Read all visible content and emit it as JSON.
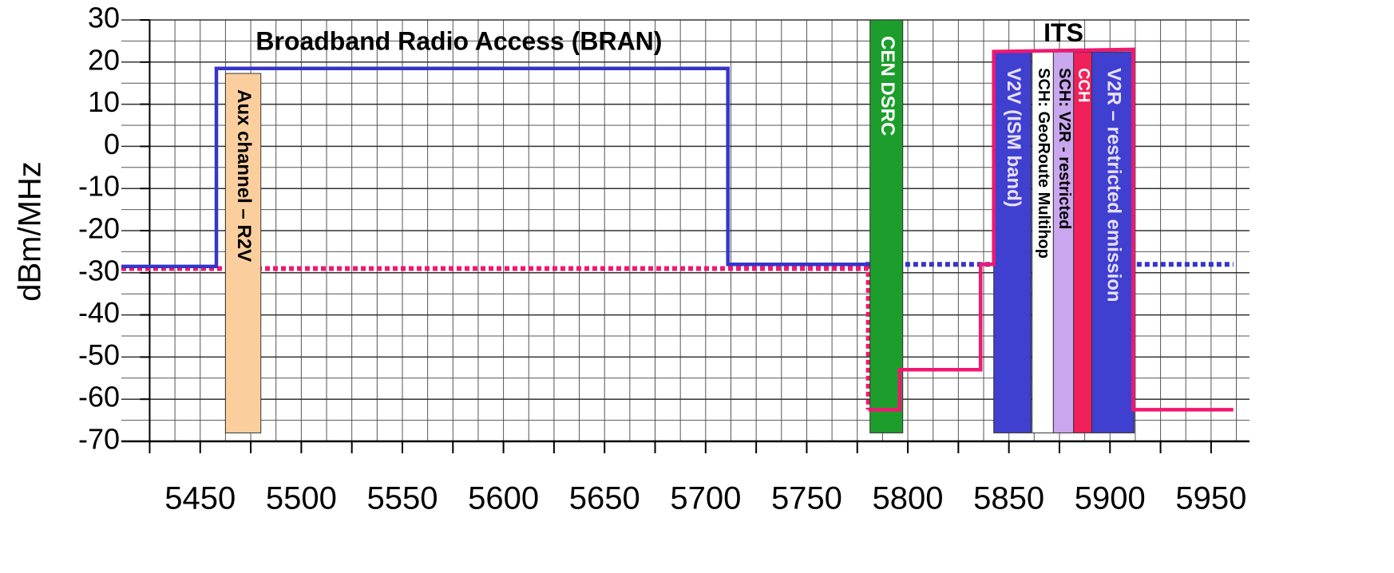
{
  "chart_data": {
    "type": "line",
    "annotations": [
      {
        "text": "Broadband Radio Access (BRAN)",
        "x": 5578,
        "y": 24.5
      },
      {
        "text": "ITS",
        "x": 5877,
        "y": 26.5
      }
    ],
    "ylabel": "dBm/MHz",
    "xlim": [
      5411,
      5969
    ],
    "ylim": [
      -70,
      30
    ],
    "xticks": [
      5450,
      5500,
      5550,
      5600,
      5650,
      5700,
      5750,
      5800,
      5850,
      5900,
      5950
    ],
    "xminorticks": [
      5425,
      5475,
      5525,
      5575,
      5625,
      5675,
      5725,
      5775,
      5825,
      5875,
      5925
    ],
    "yticks": [
      -70,
      -60,
      -50,
      -40,
      -30,
      -20,
      -10,
      0,
      10,
      20,
      30
    ],
    "xgrid": [
      5425,
      5437.5,
      5450,
      5462.5,
      5475,
      5487.5,
      5500,
      5512.5,
      5525,
      5537.5,
      5550,
      5562.5,
      5575,
      5587.5,
      5600,
      5612.5,
      5625,
      5637.5,
      5650,
      5662.5,
      5675,
      5687.5,
      5700,
      5712.5,
      5725,
      5737.5,
      5750,
      5762.5,
      5775,
      5787.5,
      5800,
      5812.5,
      5825,
      5837.5,
      5850,
      5862.5,
      5875,
      5887.5,
      5900,
      5912.5,
      5925,
      5937.5,
      5950,
      5962.5
    ],
    "ygrid": [
      -65,
      -60,
      -55,
      -50,
      -45,
      -40,
      -35,
      -30,
      -25,
      -20,
      -15,
      -10,
      -5,
      0,
      5,
      10,
      15,
      20,
      25
    ],
    "series": [
      {
        "color": "#3535c8",
        "style": "solid",
        "x": [
          5411,
          5458,
          5458,
          5711,
          5711,
          5779
        ],
        "values": [
          -28.5,
          -28.5,
          18.5,
          18.5,
          -28,
          -28
        ]
      },
      {
        "color": "#3535c8",
        "style": "dotted",
        "x": [
          5779,
          5961
        ],
        "values": [
          -28,
          -28
        ]
      },
      {
        "color": "#f01870",
        "style": "dotted",
        "x": [
          5411,
          5780.5,
          5780.5
        ],
        "values": [
          -29,
          -29,
          -62.5
        ]
      },
      {
        "color": "#f01870",
        "style": "solid",
        "x": [
          5780.5,
          5796,
          5796,
          5836,
          5836,
          5842.5,
          5842.5,
          5911.5,
          5911.5,
          5961
        ],
        "values": [
          -62.5,
          -62.5,
          -53,
          -53,
          -28,
          -28,
          22.5,
          23,
          -62.5,
          -62.5
        ]
      }
    ],
    "bands": [
      {
        "label": "Aux channel – R2V",
        "x": [
          5462.5,
          5480
        ],
        "values": [
          17.3,
          -68
        ],
        "color": "#fbcf9d",
        "text_color": "#000000"
      },
      {
        "label": "CEN DSRC",
        "x": [
          5781.3,
          5797.5
        ],
        "values": [
          30,
          -68
        ],
        "color": "#1d9e2c",
        "text_color": "#ffffff"
      },
      {
        "label": "V2V (ISM band)",
        "x": [
          5842.5,
          5861
        ],
        "values": [
          22.4,
          -68
        ],
        "color": "#3f3fd0",
        "text_color": "#e8e0ff"
      },
      {
        "label": "SCH: GeoRoute Multihop",
        "x": [
          5861.5,
          5872
        ],
        "values": [
          22.4,
          -68
        ],
        "color": "#ffffff",
        "text_color": "#000000"
      },
      {
        "label": "SCH: V2R - restricted",
        "x": [
          5872,
          5882
        ],
        "values": [
          22.4,
          -68
        ],
        "color": "#c9a6ee",
        "text_color": "#000000"
      },
      {
        "label": "CCH",
        "x": [
          5882,
          5891
        ],
        "values": [
          22.4,
          -68
        ],
        "color": "#f0205a",
        "text_color": "#ffffff"
      },
      {
        "label": "V2R – restricted emission",
        "x": [
          5891,
          5912
        ],
        "values": [
          22.4,
          -68
        ],
        "color": "#3f3fd0",
        "text_color": "#e8e0ff"
      }
    ]
  }
}
